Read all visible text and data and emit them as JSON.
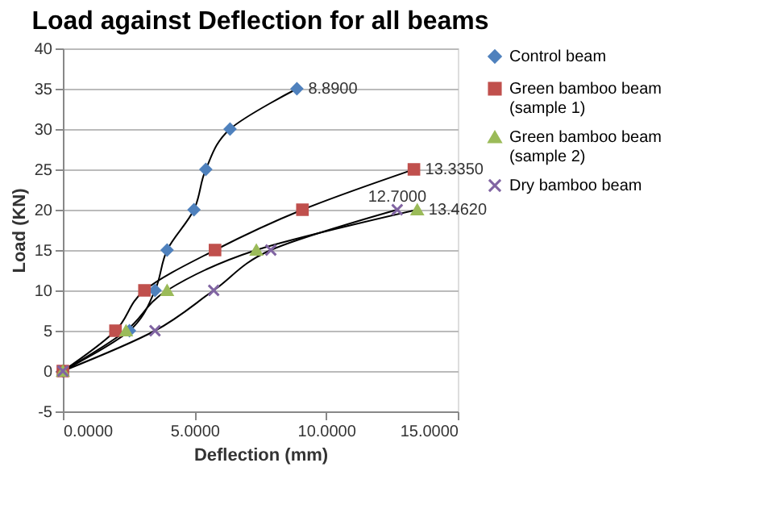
{
  "chart_data": {
    "type": "line",
    "title": "Load against Deflection for all beams",
    "xlabel": "Deflection (mm)",
    "ylabel": "Load (KN)",
    "xlim": [
      0,
      15
    ],
    "xticks": [
      {
        "value": 0,
        "label": "0.0000"
      },
      {
        "value": 5,
        "label": "5.0000"
      },
      {
        "value": 10,
        "label": "10.0000"
      },
      {
        "value": 15,
        "label": "15.0000"
      }
    ],
    "ylim": [
      -5,
      40
    ],
    "yticks": [
      -5,
      0,
      5,
      10,
      15,
      20,
      25,
      30,
      35,
      40
    ],
    "grid": "y",
    "legend": "right",
    "line_style": "solid",
    "series": [
      {
        "name": "Control beam",
        "color": "#4f81bd",
        "marker": "diamond",
        "x": [
          0,
          2.53,
          3.5,
          3.96,
          4.98,
          5.43,
          6.35,
          8.89
        ],
        "values": [
          0,
          5,
          10,
          15,
          20,
          25,
          30,
          35
        ]
      },
      {
        "name": "Green bamboo beam (sample 1)",
        "color": "#c0504d",
        "marker": "square",
        "x": [
          0,
          2.0,
          3.1,
          5.78,
          9.1,
          13.335
        ],
        "values": [
          0,
          5,
          10,
          15,
          20,
          25
        ]
      },
      {
        "name": "Green bamboo beam (sample 2)",
        "color": "#9bbb59",
        "marker": "triangle",
        "x": [
          0,
          2.4,
          3.96,
          7.35,
          13.462
        ],
        "values": [
          0,
          5,
          10,
          15,
          20
        ]
      },
      {
        "name": "Dry bamboo beam",
        "color": "#8064a2",
        "marker": "cross",
        "x": [
          0,
          3.5,
          5.73,
          7.9,
          12.7
        ],
        "values": [
          0,
          5,
          10,
          15,
          20
        ]
      }
    ],
    "annotations": [
      {
        "text": "8.8900",
        "x": 8.89,
        "y": 35
      },
      {
        "text": "13.3350",
        "x": 13.335,
        "y": 25
      },
      {
        "text": "13.4620",
        "x": 13.462,
        "y": 20
      },
      {
        "text": "12.7000",
        "x": 12.7,
        "y": 20
      }
    ]
  }
}
